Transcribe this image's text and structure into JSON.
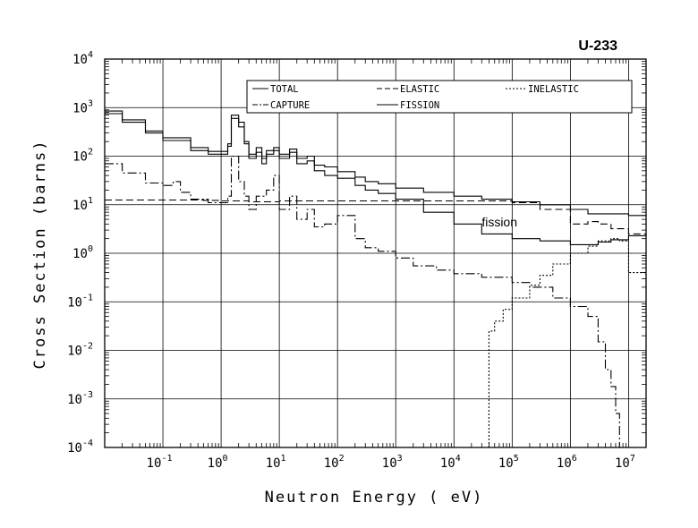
{
  "chart_data": {
    "type": "line",
    "title": "U-233",
    "xlabel": "Neutron Energy ( eV)",
    "ylabel": "Cross Section (barns)",
    "x_scale": "log",
    "y_scale": "log",
    "xlim": [
      0.01,
      20000000
    ],
    "ylim": [
      0.0001,
      10000
    ],
    "grid": true,
    "legend_position": "top-right",
    "x_ticks": [
      {
        "base": "10",
        "exp": "-1",
        "value": 0.1
      },
      {
        "base": "10",
        "exp": "0",
        "value": 1
      },
      {
        "base": "10",
        "exp": "1",
        "value": 10
      },
      {
        "base": "10",
        "exp": "2",
        "value": 100
      },
      {
        "base": "10",
        "exp": "3",
        "value": 1000
      },
      {
        "base": "10",
        "exp": "4",
        "value": 10000
      },
      {
        "base": "10",
        "exp": "5",
        "value": 100000
      },
      {
        "base": "10",
        "exp": "6",
        "value": 1000000
      },
      {
        "base": "10",
        "exp": "7",
        "value": 10000000
      }
    ],
    "y_ticks": [
      {
        "base": "10",
        "exp": "-4",
        "value": 0.0001
      },
      {
        "base": "10",
        "exp": "-3",
        "value": 0.001
      },
      {
        "base": "10",
        "exp": "-2",
        "value": 0.01
      },
      {
        "base": "10",
        "exp": "-1",
        "value": 0.1
      },
      {
        "base": "10",
        "exp": "0",
        "value": 1
      },
      {
        "base": "10",
        "exp": "1",
        "value": 10
      },
      {
        "base": "10",
        "exp": "2",
        "value": 100
      },
      {
        "base": "10",
        "exp": "3",
        "value": 1000
      },
      {
        "base": "10",
        "exp": "4",
        "value": 10000
      }
    ],
    "annotations": [
      {
        "text": "fission",
        "x": 30000,
        "y": 3.6
      }
    ],
    "series": [
      {
        "name": "TOTAL",
        "style": "solid",
        "points": [
          [
            0.01,
            850
          ],
          [
            0.02,
            560
          ],
          [
            0.05,
            330
          ],
          [
            0.1,
            240
          ],
          [
            0.3,
            150
          ],
          [
            0.6,
            125
          ],
          [
            1.0,
            125
          ],
          [
            1.3,
            180
          ],
          [
            1.5,
            700
          ],
          [
            2.0,
            500
          ],
          [
            2.5,
            200
          ],
          [
            3,
            110
          ],
          [
            4,
            150
          ],
          [
            5,
            90
          ],
          [
            6,
            130
          ],
          [
            8,
            150
          ],
          [
            10,
            110
          ],
          [
            15,
            140
          ],
          [
            20,
            90
          ],
          [
            30,
            100
          ],
          [
            40,
            65
          ],
          [
            60,
            60
          ],
          [
            100,
            48
          ],
          [
            200,
            37
          ],
          [
            300,
            30
          ],
          [
            500,
            27
          ],
          [
            1000,
            22
          ],
          [
            3000,
            18
          ],
          [
            10000,
            15
          ],
          [
            30000,
            13
          ],
          [
            100000,
            11.5
          ],
          [
            300000,
            10
          ],
          [
            1000000,
            8
          ],
          [
            2000000,
            6.5
          ],
          [
            3000000,
            6.5
          ],
          [
            5000000,
            6.5
          ],
          [
            10000000,
            6
          ],
          [
            20000000,
            6
          ]
        ]
      },
      {
        "name": "ELASTIC",
        "style": "dashed",
        "points": [
          [
            0.01,
            12.5
          ],
          [
            0.1,
            12.5
          ],
          [
            0.5,
            12.3
          ],
          [
            1,
            12
          ],
          [
            3,
            11.5
          ],
          [
            10,
            12
          ],
          [
            30,
            12
          ],
          [
            100,
            12
          ],
          [
            1000,
            12
          ],
          [
            10000,
            12
          ],
          [
            100000,
            11
          ],
          [
            300000,
            8
          ],
          [
            1000000,
            4
          ],
          [
            2000000,
            4.5
          ],
          [
            3000000,
            4
          ],
          [
            5000000,
            3.2
          ],
          [
            10000000,
            2.5
          ],
          [
            20000000,
            2.2
          ]
        ]
      },
      {
        "name": "INELASTIC",
        "style": "dotted",
        "points": [
          [
            40000,
            0.0001
          ],
          [
            40000,
            0.025
          ],
          [
            50000,
            0.04
          ],
          [
            70000,
            0.07
          ],
          [
            100000,
            0.12
          ],
          [
            200000,
            0.22
          ],
          [
            300000,
            0.35
          ],
          [
            500000,
            0.6
          ],
          [
            1000000,
            1.0
          ],
          [
            2000000,
            1.4
          ],
          [
            3000000,
            1.8
          ],
          [
            5000000,
            2.0
          ],
          [
            7000000,
            1.8
          ],
          [
            10000000,
            0.4
          ],
          [
            20000000,
            0.1
          ]
        ]
      },
      {
        "name": "CAPTURE",
        "style": "dashdot",
        "points": [
          [
            0.01,
            70
          ],
          [
            0.02,
            45
          ],
          [
            0.05,
            28
          ],
          [
            0.1,
            25
          ],
          [
            0.15,
            30
          ],
          [
            0.2,
            18
          ],
          [
            0.3,
            13
          ],
          [
            0.6,
            11
          ],
          [
            1,
            11
          ],
          [
            1.3,
            15
          ],
          [
            1.5,
            100
          ],
          [
            2,
            30
          ],
          [
            2.5,
            15
          ],
          [
            3,
            8
          ],
          [
            4,
            15
          ],
          [
            6,
            20
          ],
          [
            8,
            40
          ],
          [
            10,
            8
          ],
          [
            15,
            15
          ],
          [
            20,
            5
          ],
          [
            30,
            8
          ],
          [
            40,
            3.5
          ],
          [
            60,
            4
          ],
          [
            100,
            6
          ],
          [
            200,
            2
          ],
          [
            300,
            1.3
          ],
          [
            500,
            1.1
          ],
          [
            1000,
            0.8
          ],
          [
            2000,
            0.55
          ],
          [
            5000,
            0.45
          ],
          [
            10000,
            0.38
          ],
          [
            30000,
            0.32
          ],
          [
            100000,
            0.25
          ],
          [
            200000,
            0.2
          ],
          [
            500000,
            0.12
          ],
          [
            1000000,
            0.08
          ],
          [
            2000000,
            0.05
          ],
          [
            3000000,
            0.015
          ],
          [
            4000000,
            0.004
          ],
          [
            5000000,
            0.0018
          ],
          [
            6000000,
            0.0005
          ],
          [
            7000000,
            0.0001
          ]
        ]
      },
      {
        "name": "FISSION",
        "style": "solid",
        "points": [
          [
            0.01,
            750
          ],
          [
            0.02,
            500
          ],
          [
            0.05,
            300
          ],
          [
            0.1,
            210
          ],
          [
            0.3,
            130
          ],
          [
            0.6,
            110
          ],
          [
            1.0,
            110
          ],
          [
            1.3,
            160
          ],
          [
            1.5,
            600
          ],
          [
            2.0,
            400
          ],
          [
            2.5,
            180
          ],
          [
            3,
            90
          ],
          [
            4,
            120
          ],
          [
            5,
            70
          ],
          [
            6,
            110
          ],
          [
            8,
            130
          ],
          [
            10,
            90
          ],
          [
            15,
            120
          ],
          [
            20,
            70
          ],
          [
            30,
            80
          ],
          [
            40,
            50
          ],
          [
            60,
            40
          ],
          [
            100,
            35
          ],
          [
            200,
            25
          ],
          [
            300,
            20
          ],
          [
            500,
            17
          ],
          [
            1000,
            13
          ],
          [
            3000,
            7
          ],
          [
            10000,
            4
          ],
          [
            30000,
            2.5
          ],
          [
            100000,
            2.0
          ],
          [
            300000,
            1.8
          ],
          [
            1000000,
            1.5
          ],
          [
            2000000,
            1.5
          ],
          [
            3000000,
            1.7
          ],
          [
            5000000,
            1.9
          ],
          [
            10000000,
            2.3
          ],
          [
            20000000,
            2.4
          ]
        ]
      }
    ]
  }
}
